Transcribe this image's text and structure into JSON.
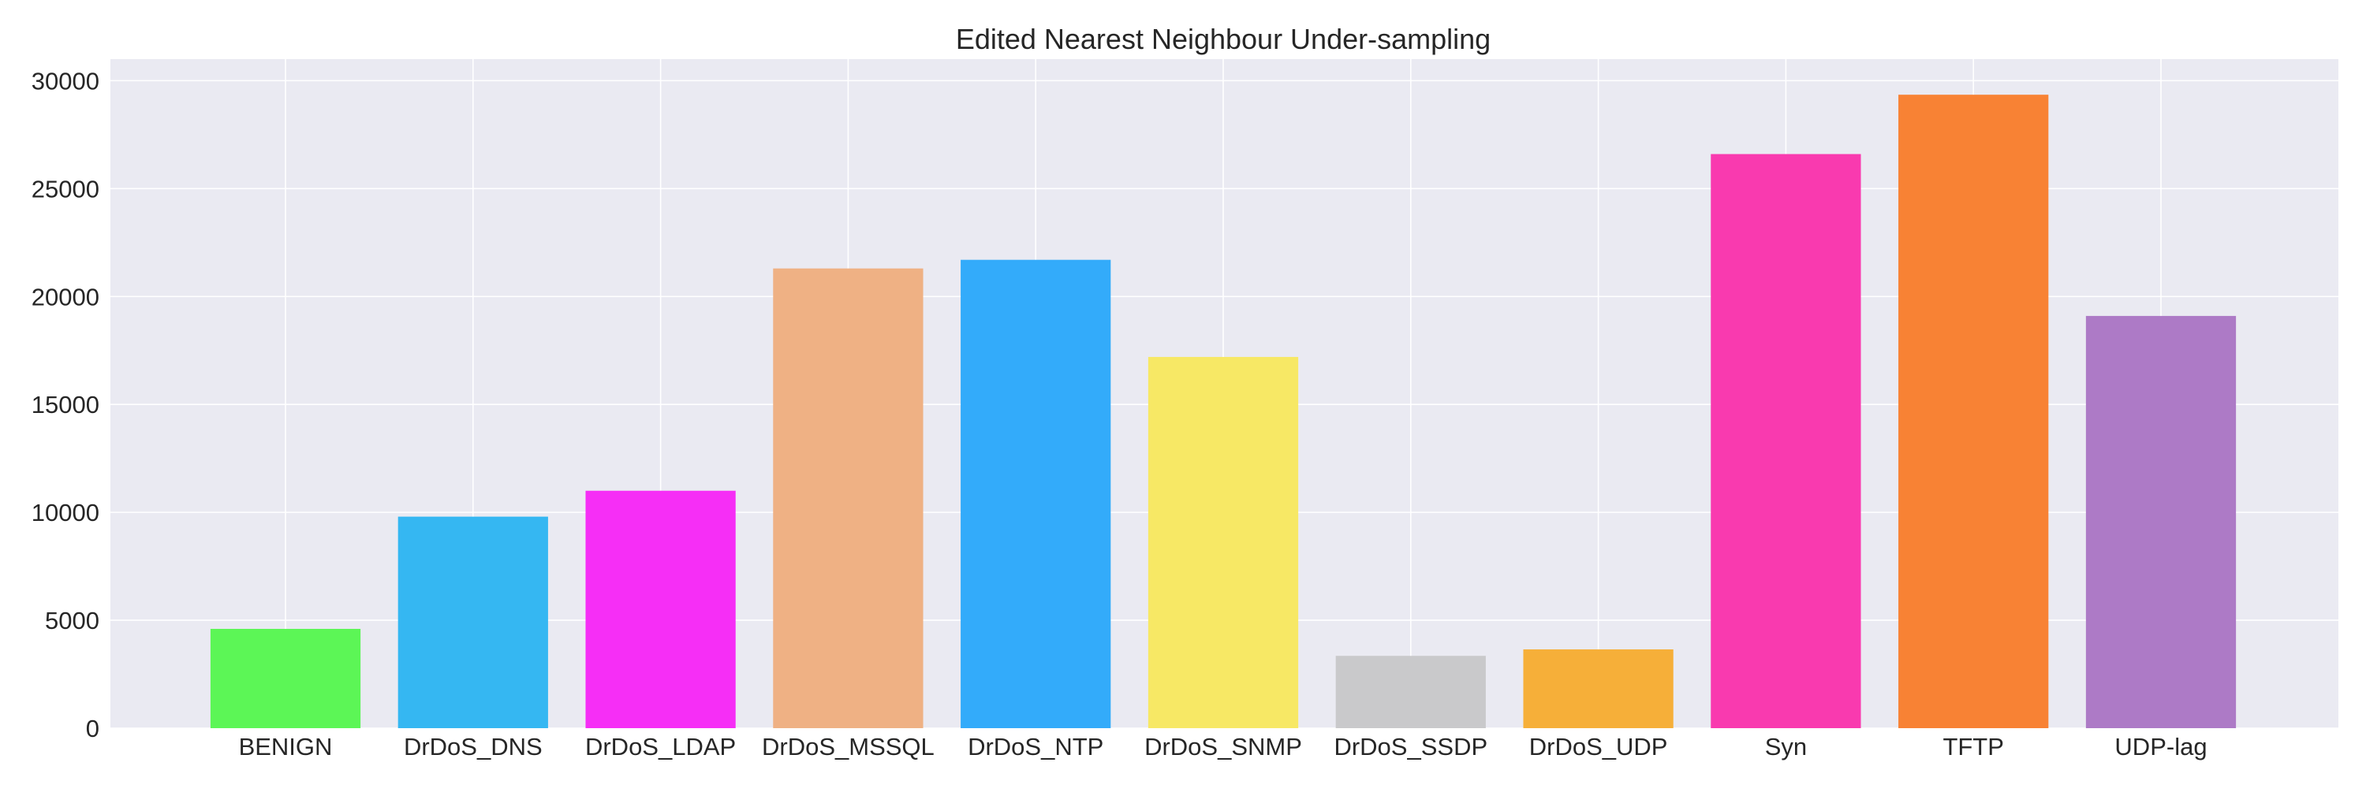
{
  "chart_data": {
    "type": "bar",
    "title": "Edited Nearest Neighbour Under-sampling",
    "xlabel": "",
    "ylabel": "",
    "ylim": [
      0,
      31000
    ],
    "yticks": [
      0,
      5000,
      10000,
      15000,
      20000,
      25000,
      30000
    ],
    "grid": true,
    "categories": [
      "BENIGN",
      "DrDoS_DNS",
      "DrDoS_LDAP",
      "DrDoS_MSSQL",
      "DrDoS_NTP",
      "DrDoS_SNMP",
      "DrDoS_SSDP",
      "DrDoS_UDP",
      "Syn",
      "TFTP",
      "UDP-lag"
    ],
    "values": [
      4600,
      9800,
      11000,
      21300,
      21700,
      17200,
      3350,
      3650,
      26600,
      29350,
      19100
    ],
    "colors": [
      "#5CF656",
      "#35B7F2",
      "#F62EF6",
      "#EFB184",
      "#33ABFA",
      "#F7E865",
      "#C9C9CB",
      "#F6AF39",
      "#F93AAF",
      "#F88234",
      "#AD7AC6"
    ],
    "background_color": "#EAEAF2",
    "grid_color": "#FFFFFF"
  }
}
